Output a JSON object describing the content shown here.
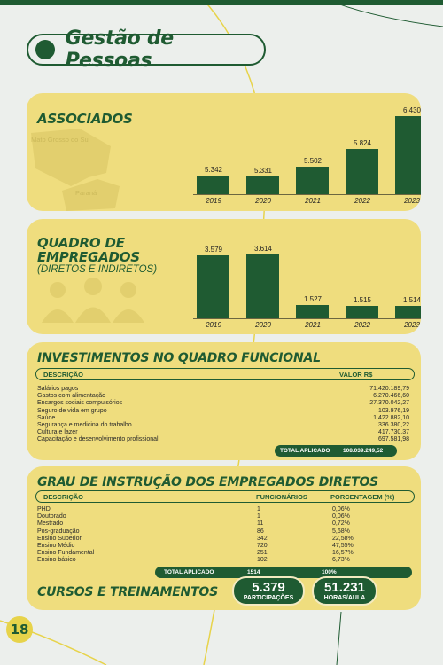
{
  "header": {
    "title": "Gestão de Pessoas"
  },
  "page_number": "18",
  "associados": {
    "title": "ASSOCIADOS",
    "map_labels": [
      "Mato Grosso do Sul",
      "Paraná"
    ],
    "chart_data": {
      "type": "bar",
      "categories": [
        "2019",
        "2020",
        "2021",
        "2022",
        "2023"
      ],
      "values": [
        5342,
        5331,
        5502,
        5824,
        6430
      ],
      "value_labels": [
        "5.342",
        "5.331",
        "5.502",
        "5.824",
        "6.430"
      ]
    }
  },
  "empregados": {
    "title_line1": "QUADRO DE",
    "title_line2": "EMPREGADOS",
    "subtitle": "(DIRETOS E INDIRETOS)",
    "chart_data": {
      "type": "bar",
      "categories": [
        "2019",
        "2020",
        "2021",
        "2022",
        "2023"
      ],
      "values": [
        3579,
        3614,
        1527,
        1515,
        1514
      ],
      "value_labels": [
        "3.579",
        "3.614",
        "1.527",
        "1.515",
        "1.514"
      ]
    }
  },
  "investimentos": {
    "title": "INVESTIMENTOS NO QUADRO FUNCIONAL",
    "col_desc": "DESCRIÇÃO",
    "col_valor": "VALOR R$",
    "rows": [
      [
        "Salários pagos",
        "71.420.189,79"
      ],
      [
        "Gastos com alimentação",
        "6.270.466,60"
      ],
      [
        "Encargos sociais compulsórios",
        "27.370.042,27"
      ],
      [
        "Seguro de vida em grupo",
        "103.976,19"
      ],
      [
        "Saúde",
        "1.422.882,10"
      ],
      [
        "Segurança e medicina do trabalho",
        "336.380,22"
      ],
      [
        "Cultura e lazer",
        "417.730,37"
      ],
      [
        "Capacitação e desenvolvimento profissional",
        "697.581,98"
      ]
    ],
    "total_label": "TOTAL APLICADO",
    "total_value": "108.039.249,52"
  },
  "instrucao": {
    "title": "GRAU DE INSTRUÇÃO DOS EMPREGADOS DIRETOS",
    "col_desc": "DESCRIÇÃO",
    "col_func": "FUNCIONÁRIOS",
    "col_pct": "PORCENTAGEM (%)",
    "rows": [
      [
        "PHD",
        "1",
        "0,06%"
      ],
      [
        "Doutorado",
        "1",
        "0,06%"
      ],
      [
        "Mestrado",
        "11",
        "0,72%"
      ],
      [
        "Pós-graduação",
        "86",
        "5,68%"
      ],
      [
        "Ensino Superior",
        "342",
        "22,58%"
      ],
      [
        "Ensino Médio",
        "720",
        "47,55%"
      ],
      [
        "Ensino Fundamental",
        "251",
        "16,57%"
      ],
      [
        "Ensino básico",
        "102",
        "6,73%"
      ]
    ],
    "total_label": "TOTAL APLICADO",
    "total_func": "1514",
    "total_pct": "100%",
    "cursos_title": "CURSOS E TREINAMENTOS",
    "participacoes_num": "5.379",
    "participacoes_lbl": "PARTICIPAÇÕES",
    "horas_num": "51.231",
    "horas_lbl": "HORAS/AULA"
  },
  "colors": {
    "green": "#1f5b32",
    "card": "#efdd7e",
    "accent": "#e7d34a"
  }
}
